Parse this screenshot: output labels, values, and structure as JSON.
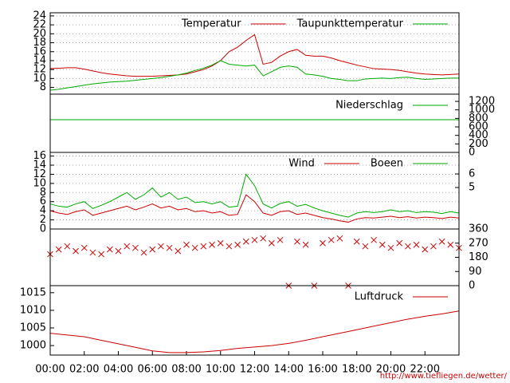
{
  "chart_data": [
    {
      "type": "line",
      "xlim": [
        0,
        24
      ],
      "x": [
        0,
        0.5,
        1,
        1.5,
        2,
        2.5,
        3,
        3.5,
        4,
        4.5,
        5,
        5.5,
        6,
        6.5,
        7,
        7.5,
        8,
        8.5,
        9,
        9.5,
        10,
        10.5,
        11,
        11.5,
        12,
        12.5,
        13,
        13.5,
        14,
        14.5,
        15,
        15.5,
        16,
        16.5,
        17,
        17.5,
        18,
        18.5,
        19,
        19.5,
        20,
        20.5,
        21,
        21.5,
        22,
        22.5,
        23,
        23.5,
        24
      ],
      "series": [
        {
          "name": "Temperatur",
          "color": "#cc0000",
          "values": [
            12.2,
            12.3,
            12.4,
            12.4,
            12.1,
            11.7,
            11.3,
            11,
            10.8,
            10.6,
            10.5,
            10.5,
            10.5,
            10.6,
            10.7,
            10.8,
            11,
            11.5,
            12,
            12.8,
            14,
            16,
            17,
            18.5,
            19.8,
            13.2,
            13.6,
            15,
            16,
            16.5,
            15.2,
            15,
            15,
            14.6,
            14,
            13.5,
            13,
            12.6,
            12.2,
            12.1,
            12,
            11.8,
            11.5,
            11.2,
            11,
            10.9,
            10.8,
            10.9,
            11
          ]
        },
        {
          "name": "Taupunkttemperatur",
          "color": "#00aa00",
          "values": [
            7.4,
            7.6,
            7.9,
            8.2,
            8.5,
            8.8,
            9,
            9.2,
            9.3,
            9.4,
            9.6,
            9.8,
            10,
            10.2,
            10.5,
            10.8,
            11.2,
            11.8,
            12.3,
            13,
            14,
            13.2,
            13,
            12.8,
            13,
            10.6,
            11.5,
            12.5,
            12.8,
            12.5,
            11,
            10.8,
            10.5,
            10,
            9.8,
            9.5,
            9.5,
            9.9,
            10,
            10.1,
            10,
            10.2,
            10.3,
            10,
            9.8,
            9.9,
            10,
            10.1,
            10.1
          ]
        }
      ],
      "ylim": [
        6.5,
        24.7
      ],
      "yticks": [
        8,
        10,
        12,
        14,
        16,
        18,
        20,
        22,
        24
      ],
      "grid": true
    },
    {
      "type": "line",
      "xlim": [
        0,
        24
      ],
      "x": [
        0,
        24
      ],
      "series": [
        {
          "name": "Niederschlag",
          "color": "#00aa00",
          "axis": "y2",
          "values": [
            770,
            770
          ]
        }
      ],
      "y2lim": [
        0,
        1370
      ],
      "y2ticks": [
        0,
        200,
        400,
        600,
        800,
        1000,
        1200
      ],
      "grid": false
    },
    {
      "type": "line",
      "xlim": [
        0,
        24
      ],
      "x": [
        0,
        0.5,
        1,
        1.5,
        2,
        2.5,
        3,
        3.5,
        4,
        4.5,
        5,
        5.5,
        6,
        6.5,
        7,
        7.5,
        8,
        8.5,
        9,
        9.5,
        10,
        10.5,
        11,
        11.5,
        12,
        12.5,
        13,
        13.5,
        14,
        14.5,
        15,
        15.5,
        16,
        16.5,
        17,
        17.5,
        18,
        18.5,
        19,
        19.5,
        20,
        20.5,
        21,
        21.5,
        22,
        22.5,
        23,
        23.5,
        24
      ],
      "series": [
        {
          "name": "Wind",
          "color": "#cc0000",
          "values": [
            4,
            3.5,
            3.2,
            3.8,
            4.2,
            3,
            3.5,
            4,
            4.5,
            5,
            4.2,
            4.8,
            5.5,
            4.6,
            5,
            4.2,
            4.5,
            3.8,
            4,
            3.5,
            3.8,
            3,
            3.2,
            7.5,
            6,
            3.5,
            3,
            3.8,
            4,
            3.2,
            3.5,
            3,
            2.5,
            2.2,
            1.8,
            1.5,
            2.2,
            2.5,
            2.4,
            2.6,
            2.8,
            2.5,
            2.7,
            2.4,
            2.6,
            2.5,
            2.3,
            2.6,
            2.4
          ]
        },
        {
          "name": "Boeen",
          "color": "#00aa00",
          "values": [
            5.5,
            5,
            4.8,
            5.5,
            6,
            4.5,
            5.2,
            6,
            7,
            8,
            6.5,
            7.5,
            9,
            7,
            8,
            6.5,
            7,
            5.8,
            6,
            5.5,
            6,
            4.8,
            5,
            12,
            9.5,
            5.5,
            4.6,
            5.6,
            6,
            5,
            5.4,
            4.6,
            4,
            3.5,
            3,
            2.6,
            3.5,
            3.8,
            3.6,
            3.8,
            4.2,
            3.8,
            4,
            3.6,
            3.8,
            3.7,
            3.4,
            3.8,
            3.5
          ]
        }
      ],
      "ylim": [
        0,
        16.8
      ],
      "yticks": [
        0,
        2,
        4,
        6,
        8,
        10,
        12,
        14,
        16
      ],
      "y2lim": [
        1.94,
        7.59
      ],
      "y2ticks": [
        5,
        6
      ],
      "grid": true
    },
    {
      "type": "scatter",
      "xlim": [
        0,
        24
      ],
      "x": [
        0,
        0.5,
        1,
        1.5,
        2,
        2.5,
        3,
        3.5,
        4,
        4.5,
        5,
        5.5,
        6,
        6.5,
        7,
        7.5,
        8,
        8.5,
        9,
        9.5,
        10,
        10.5,
        11,
        11.5,
        12,
        12.5,
        13,
        13.5,
        14,
        14.5,
        15,
        15.5,
        16,
        16.5,
        17,
        17.5,
        18,
        18.5,
        19,
        19.5,
        20,
        20.5,
        21,
        21.5,
        22,
        22.5,
        23,
        23.5,
        24
      ],
      "series": [
        {
          "color": "#cc0000",
          "axis": "y2",
          "values": [
            200,
            230,
            250,
            220,
            240,
            210,
            200,
            230,
            220,
            250,
            240,
            210,
            230,
            250,
            240,
            220,
            260,
            240,
            250,
            260,
            270,
            250,
            260,
            280,
            290,
            300,
            270,
            290,
            0,
            280,
            260,
            0,
            270,
            290,
            300,
            0,
            280,
            250,
            290,
            260,
            240,
            270,
            250,
            260,
            230,
            250,
            280,
            260,
            240
          ]
        }
      ],
      "y2lim": [
        0,
        360
      ],
      "y2ticks": [
        0,
        90,
        180,
        270,
        360
      ],
      "grid": false
    },
    {
      "type": "line",
      "xlim": [
        0,
        24
      ],
      "x": [
        0,
        1,
        2,
        3,
        4,
        5,
        6,
        7,
        8,
        9,
        10,
        11,
        12,
        13,
        14,
        15,
        16,
        17,
        18,
        19,
        20,
        21,
        22,
        23,
        24
      ],
      "series": [
        {
          "name": "Luftdruck",
          "color": "#cc0000",
          "values": [
            1003.5,
            1003,
            1002.5,
            1001.5,
            1000.5,
            999.5,
            998.5,
            998,
            998,
            998.2,
            998.6,
            999.2,
            999.6,
            1000,
            1000.6,
            1001.5,
            1002.5,
            1003.5,
            1004.5,
            1005.5,
            1006.5,
            1007.5,
            1008.3,
            1009,
            1009.8
          ]
        }
      ],
      "ylim": [
        997.3,
        1017
      ],
      "yticks": [
        1000,
        1005,
        1010,
        1015
      ],
      "grid": false,
      "xticks": [
        {
          "value": 0,
          "label": "00:00"
        },
        {
          "value": 2,
          "label": "02:00"
        },
        {
          "value": 4,
          "label": "04:00"
        },
        {
          "value": 6,
          "label": "06:00"
        },
        {
          "value": 8,
          "label": "08:00"
        },
        {
          "value": 10,
          "label": "10:00"
        },
        {
          "value": 12,
          "label": "12:00"
        },
        {
          "value": 14,
          "label": "14:00"
        },
        {
          "value": 16,
          "label": "16:00"
        },
        {
          "value": 18,
          "label": "18:00"
        },
        {
          "value": 20,
          "label": "20:00"
        },
        {
          "value": 22,
          "label": "22:00"
        }
      ]
    }
  ],
  "footer": "http://www.tiefliegen.de/wetter/"
}
